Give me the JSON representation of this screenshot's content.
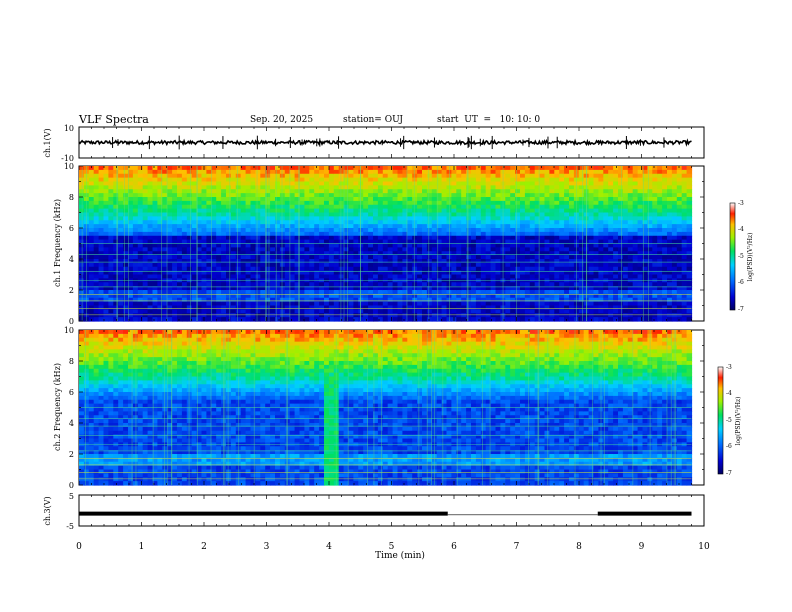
{
  "header": {
    "title": "VLF Spectra",
    "date": "Sep. 20, 2025",
    "station": "station= OUJ",
    "start": "start  UT  =   10: 10: 0"
  },
  "chart_data": [
    {
      "type": "line",
      "name": "channel-1-waveform",
      "ylabel": "ch.1(V)",
      "ylim": [
        -10,
        10
      ],
      "yticks": [
        "10",
        "-10"
      ],
      "baseline": 0,
      "xlim": [
        0,
        9.8
      ]
    },
    {
      "type": "heatmap",
      "name": "channel-1-spectrogram",
      "ylabel": "ch.1  Frequency  (kHz)",
      "ylim": [
        0,
        10
      ],
      "yticks": [
        "10",
        "8",
        "6",
        "4",
        "2",
        "0"
      ],
      "xlim": [
        0,
        9.8
      ],
      "colorbar": {
        "label": "log(PSD)(V²/Hz)",
        "ticks": [
          "-3",
          "-4",
          "-5",
          "-6",
          "-7"
        ],
        "range": [
          -7,
          -3
        ]
      }
    },
    {
      "type": "heatmap",
      "name": "channel-2-spectrogram",
      "ylabel": "ch.2  Frequency  (kHz)",
      "ylim": [
        0,
        10
      ],
      "yticks": [
        "10",
        "8",
        "6",
        "4",
        "2",
        "0"
      ],
      "xlim": [
        0,
        9.8
      ],
      "colorbar": {
        "label": "log(PSD)(V²/Hz)",
        "ticks": [
          "-3",
          "-4",
          "-5",
          "-6",
          "-7"
        ],
        "range": [
          -7,
          -3
        ]
      }
    },
    {
      "type": "line",
      "name": "channel-3-trace",
      "ylabel": "ch.3(V)",
      "ylim": [
        -5,
        5
      ],
      "yticks": [
        "5",
        "-5"
      ],
      "segments": [
        {
          "x": [
            0,
            5.9
          ],
          "y": -1.0
        },
        {
          "x": [
            8.3,
            9.8
          ],
          "y": -1.0
        }
      ]
    }
  ],
  "xaxis": {
    "label": "Time  (min)",
    "ticks": [
      "0",
      "1",
      "2",
      "3",
      "4",
      "5",
      "6",
      "7",
      "8",
      "9",
      "10"
    ],
    "xlim": [
      0,
      10
    ]
  }
}
